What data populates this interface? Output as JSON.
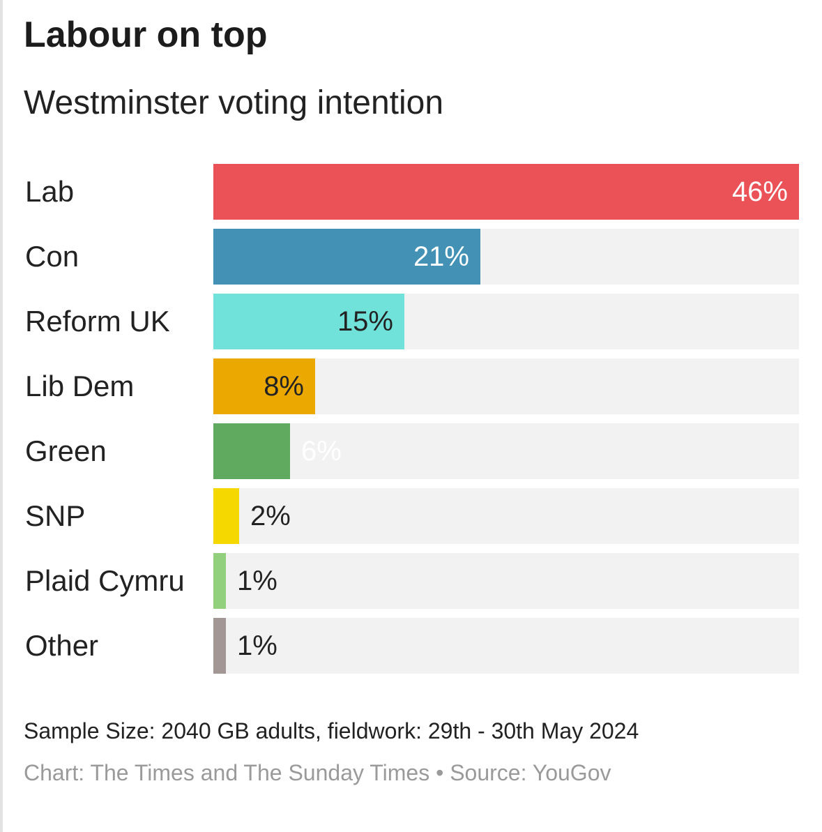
{
  "chart_data": {
    "type": "bar",
    "orientation": "horizontal",
    "title": "Labour on top",
    "subtitle": "Westminster voting intention",
    "categories": [
      "Lab",
      "Con",
      "Reform UK",
      "Lib Dem",
      "Green",
      "SNP",
      "Plaid Cymru",
      "Other"
    ],
    "values": [
      46,
      21,
      15,
      8,
      6,
      2,
      1,
      1
    ],
    "value_labels": [
      "46%",
      "21%",
      "15%",
      "8%",
      "6%",
      "2%",
      "1%",
      "1%"
    ],
    "colors": [
      "#eb5257",
      "#4392b5",
      "#70e2da",
      "#eba800",
      "#5faa5e",
      "#f5d800",
      "#92d07e",
      "#a39795"
    ],
    "label_colors": [
      "#ffffff",
      "#ffffff",
      "#222222",
      "#222222",
      "#ffffff",
      "#222222",
      "#222222",
      "#222222"
    ],
    "xlim": [
      0,
      46
    ],
    "track_color": "#f2f2f2",
    "grid": false,
    "legend": "none"
  },
  "footer": {
    "note": "Sample Size: 2040 GB adults, fieldwork: 29th - 30th May 2024",
    "credit": "Chart: The Times and The Sunday Times • Source: YouGov"
  }
}
